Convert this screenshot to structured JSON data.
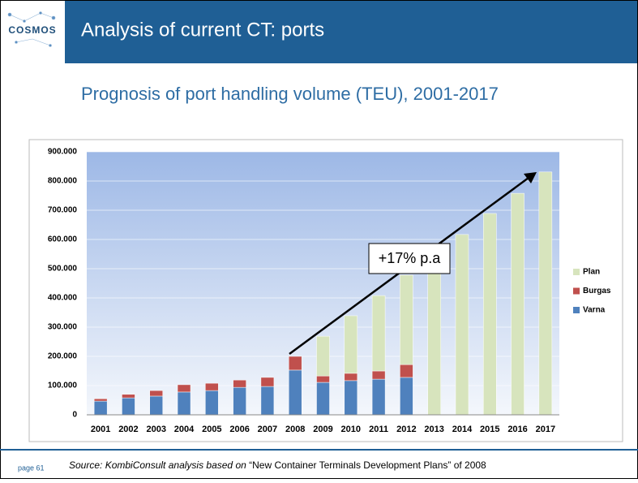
{
  "slide": {
    "logo": "COSMOS",
    "title": "Analysis of current CT: ports",
    "subtitle": "Prognosis of port handling volume (TEU), 2001-2017",
    "page": "page 61",
    "source_prefix": "Source: KombiConsult analysis based on",
    "source_doc": "“New Container Terminals Development Plans” of 2008"
  },
  "chart_data": {
    "type": "stacked_bar",
    "categories": [
      "2001",
      "2002",
      "2003",
      "2004",
      "2005",
      "2006",
      "2007",
      "2008",
      "2009",
      "2010",
      "2011",
      "2012",
      "2013",
      "2014",
      "2015",
      "2016",
      "2017"
    ],
    "series": [
      {
        "name": "Varna",
        "color": "#4f81bd",
        "values": [
          47000,
          58000,
          64000,
          78000,
          83000,
          94000,
          97000,
          153000,
          111000,
          117000,
          122000,
          128000,
          null,
          null,
          null,
          null,
          null
        ]
      },
      {
        "name": "Burgas",
        "color": "#c0504d",
        "values": [
          8000,
          12000,
          19000,
          25000,
          25000,
          25000,
          31000,
          47000,
          22000,
          25000,
          28000,
          44000,
          null,
          null,
          null,
          null,
          null
        ]
      },
      {
        "name": "Plan",
        "color": "#d7e4bd",
        "values": [
          null,
          null,
          null,
          null,
          null,
          null,
          null,
          null,
          136000,
          197000,
          258000,
          306000,
          500000,
          617000,
          689000,
          758000,
          831000
        ]
      }
    ],
    "ylim": [
      0,
      900000
    ],
    "yticks": [
      0,
      {
        "value": 100000,
        "label": "100.000"
      },
      {
        "value": 200000,
        "label": "200.000"
      },
      {
        "value": 300000,
        "label": "300.000"
      },
      {
        "value": 400000,
        "label": "400.000"
      },
      {
        "value": 500000,
        "label": "500.000"
      },
      {
        "value": 600000,
        "label": "600.000"
      },
      {
        "value": 700000,
        "label": "700.000"
      },
      {
        "value": 800000,
        "label": "800.000"
      },
      {
        "value": 900000,
        "label": "900.000"
      }
    ],
    "grid": true,
    "annotation": "+17% p.a"
  }
}
